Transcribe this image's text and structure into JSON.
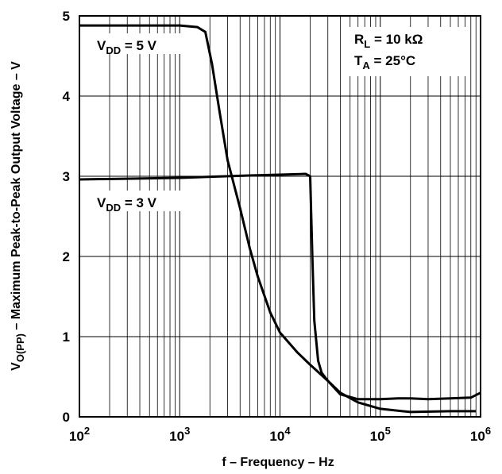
{
  "chart_data": {
    "type": "line",
    "x_scale": "log",
    "xlim": [
      100,
      1000000
    ],
    "ylim": [
      0,
      5
    ],
    "grid": true,
    "xlabel": "f – Frequency – Hz",
    "ylabel": {
      "main": "V",
      "sub": "O(PP)",
      "rest": " – Maximum Peak-to-Peak Output Voltage – V"
    },
    "x_ticks": [
      {
        "value": 100,
        "base": "10",
        "exp": "2"
      },
      {
        "value": 1000,
        "base": "10",
        "exp": "3"
      },
      {
        "value": 10000,
        "base": "10",
        "exp": "4"
      },
      {
        "value": 100000,
        "base": "10",
        "exp": "5"
      },
      {
        "value": 1000000,
        "base": "10",
        "exp": "6"
      }
    ],
    "y_ticks": [
      "0",
      "1",
      "2",
      "3",
      "4",
      "5"
    ],
    "annotations": {
      "rl": {
        "main": "R",
        "sub": "L",
        "rest": " = 10 kΩ"
      },
      "ta": {
        "main": "T",
        "sub": "A",
        "rest": " = 25°C"
      }
    },
    "series": [
      {
        "name": {
          "main": "V",
          "sub": "DD",
          "rest": " = 5 V"
        },
        "x": [
          100,
          300,
          1000,
          1500,
          1800,
          2100,
          2500,
          3000,
          4000,
          5000,
          6000,
          8000,
          10000,
          15000,
          20000,
          30000,
          40000,
          60000,
          100000,
          200000,
          500000,
          900000
        ],
        "y": [
          4.88,
          4.88,
          4.88,
          4.86,
          4.8,
          4.4,
          3.8,
          3.2,
          2.6,
          2.1,
          1.75,
          1.3,
          1.05,
          0.8,
          0.65,
          0.45,
          0.3,
          0.18,
          0.1,
          0.06,
          0.07,
          0.07
        ]
      },
      {
        "name": {
          "main": "V",
          "sub": "DD",
          "rest": " = 3 V"
        },
        "x": [
          100,
          1000,
          5000,
          10000,
          18000,
          20000,
          21000,
          22000,
          24000,
          26000,
          30000,
          40000,
          60000,
          100000,
          150000,
          200000,
          300000,
          500000,
          800000,
          1000000
        ],
        "y": [
          2.96,
          2.98,
          3.01,
          3.02,
          3.03,
          3.0,
          2.0,
          1.2,
          0.7,
          0.55,
          0.45,
          0.28,
          0.22,
          0.22,
          0.23,
          0.23,
          0.22,
          0.23,
          0.24,
          0.3
        ]
      }
    ]
  }
}
